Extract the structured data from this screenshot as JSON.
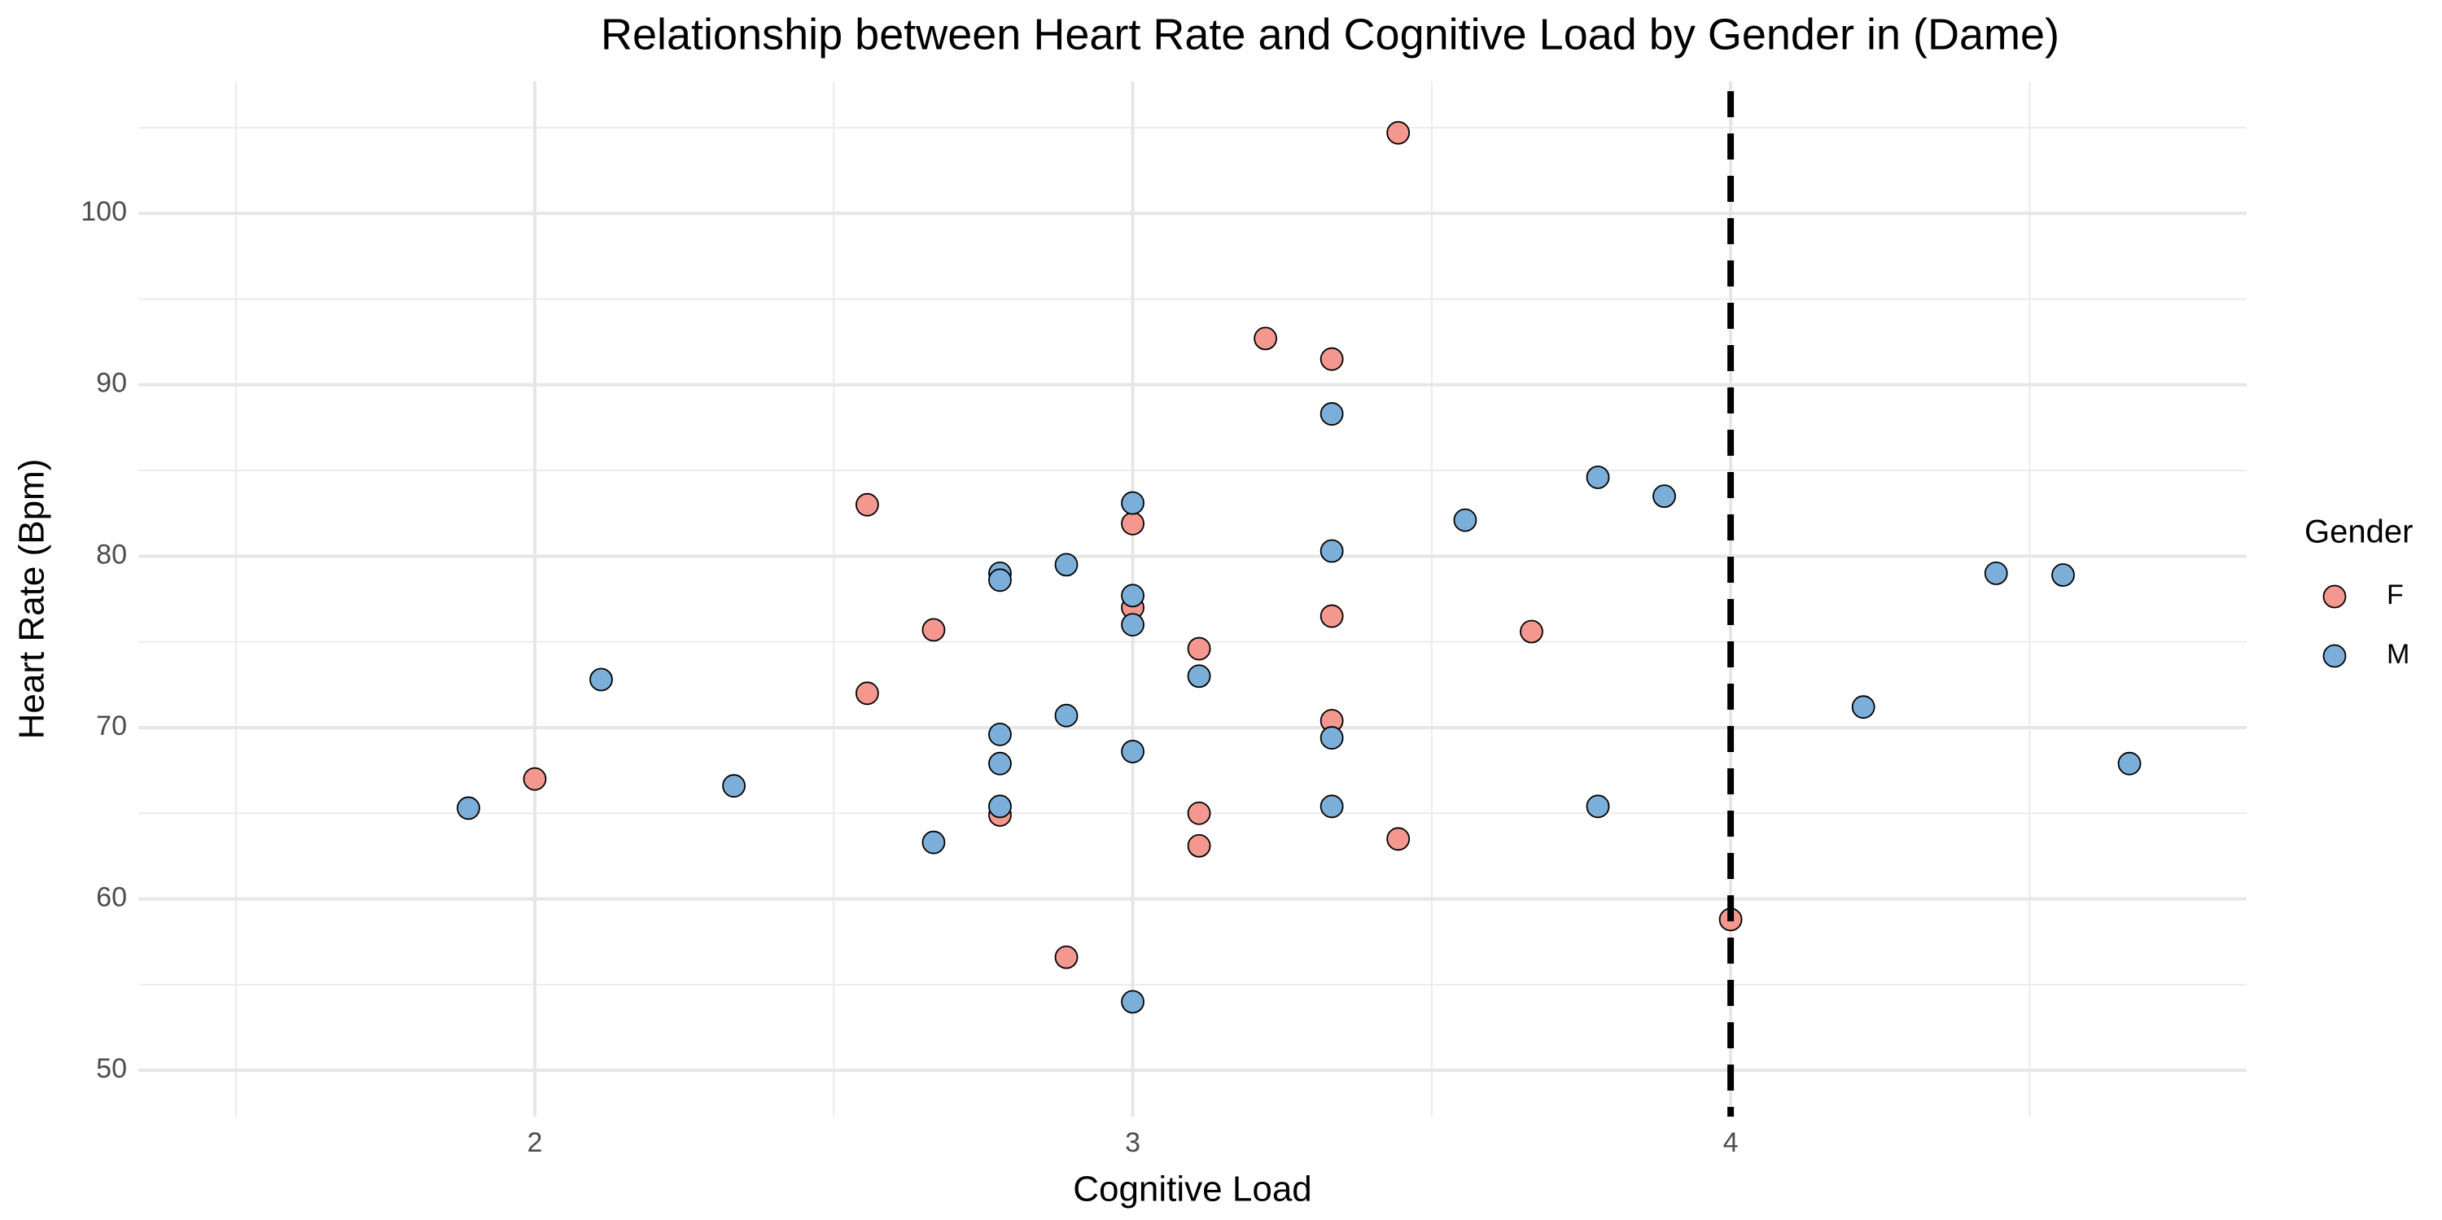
{
  "chart_data": {
    "type": "scatter",
    "title": "Relationship between Heart Rate and Cognitive Load by Gender in (Dame)",
    "x_label": "Cognitive Load",
    "y_label": "Heart Rate (Bpm)",
    "legend_title": "Gender",
    "legend_position": "right",
    "grid": true,
    "xlim": [
      1.337,
      4.863
    ],
    "ylim": [
      47.3,
      107.7
    ],
    "xticks": [
      2,
      3,
      4
    ],
    "yticks": [
      50,
      60,
      70,
      80,
      90,
      100
    ],
    "vline": 4,
    "series": [
      {
        "name": "F",
        "color": "#f4978e",
        "x": [
          2,
          2.556,
          2.667,
          2.556,
          2.778,
          2.889,
          3,
          3,
          3.111,
          3.111,
          3.111,
          3.222,
          3.333,
          3.333,
          3.333,
          3.444,
          3.444,
          3.667,
          4
        ],
        "values": [
          67.0,
          83.0,
          75.7,
          72.0,
          64.9,
          56.6,
          81.9,
          77.0,
          74.6,
          65.0,
          63.1,
          92.7,
          91.5,
          76.5,
          70.4,
          104.7,
          63.5,
          75.6,
          58.8
        ]
      },
      {
        "name": "M",
        "color": "#7bafd9",
        "x": [
          1.889,
          2.111,
          2.333,
          2.667,
          2.778,
          2.778,
          2.778,
          2.778,
          2.778,
          2.889,
          2.889,
          3,
          3,
          3,
          3,
          3,
          3.111,
          3.333,
          3.333,
          3.333,
          3.333,
          3.556,
          3.778,
          3.778,
          3.889,
          4.222,
          4.444,
          4.556,
          4.667
        ],
        "values": [
          65.3,
          72.8,
          66.6,
          63.3,
          79.0,
          78.6,
          69.6,
          67.9,
          65.4,
          79.5,
          70.7,
          83.1,
          77.7,
          76.0,
          68.6,
          54.0,
          73.0,
          88.3,
          80.3,
          69.4,
          65.4,
          82.1,
          84.6,
          65.4,
          83.5,
          71.2,
          79.0,
          78.9,
          67.9
        ]
      }
    ]
  }
}
